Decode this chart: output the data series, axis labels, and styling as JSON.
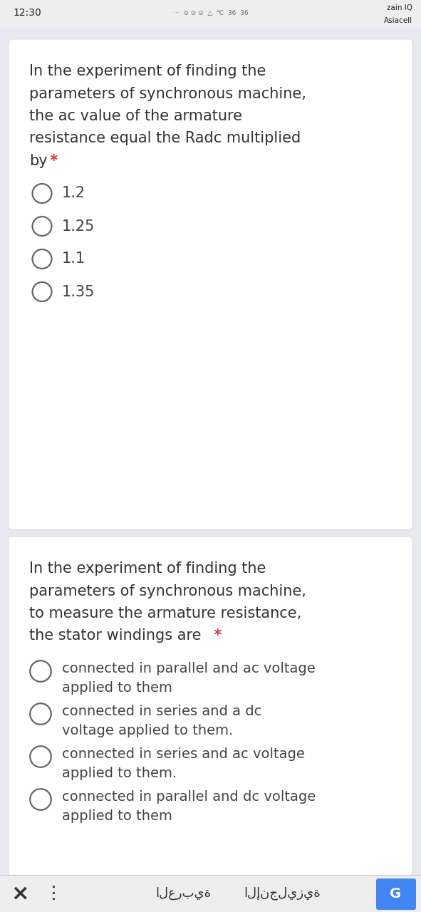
{
  "bg_color": "#e8e8f0",
  "card_color": "#ffffff",
  "status_time": "12:30",
  "status_carrier1": "zain IQ",
  "status_carrier2": "Asiacell",
  "star_color": "#e53935",
  "text_color": "#333333",
  "option_text_color": "#444444",
  "circle_color": "#666666",
  "font_size_question": 15,
  "font_size_option": 14,
  "card1_question_lines": [
    "In the experiment of finding the",
    "parameters of synchronous machine,",
    "the ac value of the armature",
    "resistance equal the Radc multiplied",
    "by"
  ],
  "card1_options": [
    "1.2",
    "1.25",
    "1.1",
    "1.35"
  ],
  "card2_question_lines": [
    "In the experiment of finding the",
    "parameters of synchronous machine,",
    "to measure the armature resistance,",
    "the stator windings are"
  ],
  "card2_options": [
    [
      "connected in parallel and ac voltage",
      "applied to them"
    ],
    [
      "connected in series and a dc",
      "voltage applied to them."
    ],
    [
      "connected in series and ac voltage",
      "applied to them."
    ],
    [
      "connected in parallel and dc voltage",
      "applied to them"
    ]
  ],
  "bottom_x": "×",
  "bottom_dots": "⋮",
  "bottom_arabic": "العربية",
  "bottom_english": "الإنجليزية",
  "google_color": "#4285f4"
}
